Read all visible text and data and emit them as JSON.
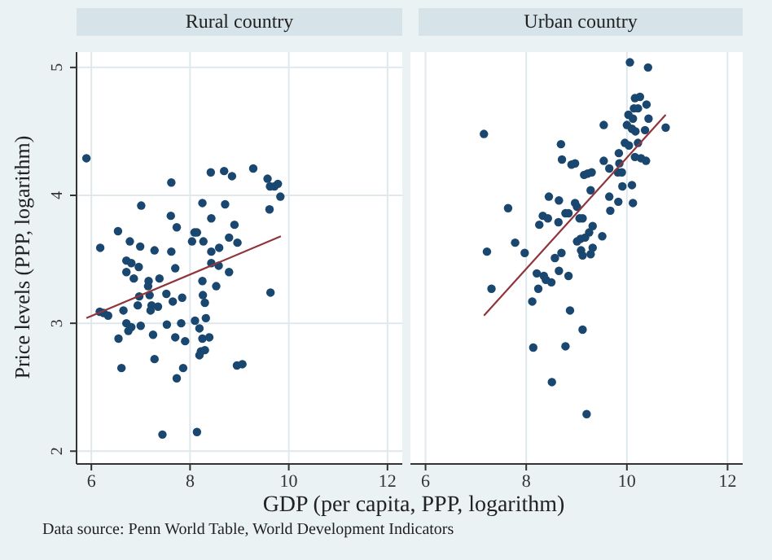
{
  "chart_data": [
    {
      "type": "scatter",
      "title": "Rural country",
      "xlabel": "GDP (per capita, PPP, logarithm)",
      "ylabel": "Price levels (PPP, logarithm)",
      "annotations": [
        "Data source: Penn World Table, World Development Indicators"
      ],
      "xlim": [
        5.7,
        12.3
      ],
      "ylim": [
        1.9,
        5.12
      ],
      "xticks": [
        6,
        8,
        10,
        12
      ],
      "yticks": [
        2,
        3,
        4,
        5
      ],
      "grid": true,
      "marker": "circle",
      "series": [
        {
          "type": "scatter",
          "color": "#1a476f",
          "x": [
            5.9,
            8.42,
            8.69,
            8.85,
            9.28,
            9.57,
            9.62,
            9.71,
            9.78,
            9.83,
            9.61,
            7.62,
            7.01,
            8.25,
            8.71,
            7.61,
            8.43,
            6.54,
            7.73,
            8.9,
            8.09,
            8.14,
            8.04,
            8.27,
            8.79,
            8.96,
            6.18,
            6.78,
            6.99,
            7.28,
            7.62,
            8.43,
            8.59,
            6.71,
            6.81,
            6.71,
            6.96,
            7.7,
            8.43,
            8.58,
            8.79,
            6.86,
            7.16,
            7.15,
            7.38,
            8.25,
            8.53,
            6.97,
            7.18,
            7.52,
            7.84,
            7.65,
            8.26,
            8.3,
            6.94,
            7.22,
            7.35,
            7.2,
            6.17,
            6.25,
            6.34,
            6.65,
            6.71,
            6.81,
            6.75,
            7.0,
            7.53,
            7.82,
            8.1,
            8.32,
            8.19,
            6.55,
            7.25,
            7.7,
            7.9,
            8.25,
            8.39,
            8.22,
            8.3,
            8.19,
            7.28,
            6.61,
            7.86,
            7.73,
            8.95,
            9.06,
            9.63,
            7.44,
            8.14
          ],
          "values": [
            4.29,
            4.18,
            4.19,
            4.15,
            4.21,
            4.13,
            4.07,
            4.07,
            4.09,
            3.99,
            3.89,
            4.1,
            3.92,
            3.94,
            3.93,
            3.84,
            3.82,
            3.72,
            3.75,
            3.77,
            3.71,
            3.71,
            3.64,
            3.64,
            3.67,
            3.63,
            3.59,
            3.64,
            3.6,
            3.57,
            3.56,
            3.56,
            3.59,
            3.49,
            3.47,
            3.4,
            3.44,
            3.43,
            3.47,
            3.45,
            3.4,
            3.35,
            3.33,
            3.29,
            3.35,
            3.33,
            3.29,
            3.21,
            3.22,
            3.23,
            3.2,
            3.17,
            3.22,
            3.16,
            3.14,
            3.14,
            3.13,
            3.1,
            3.09,
            3.08,
            3.06,
            3.1,
            3.0,
            2.97,
            2.94,
            2.98,
            2.99,
            3.0,
            3.02,
            3.04,
            2.96,
            2.88,
            2.91,
            2.89,
            2.86,
            2.88,
            2.89,
            2.78,
            2.79,
            2.75,
            2.72,
            2.65,
            2.65,
            2.57,
            2.67,
            2.68,
            3.24,
            2.13,
            2.15
          ]
        },
        {
          "type": "line",
          "color": "#90353b",
          "marker": "none",
          "x": [
            5.9,
            9.84
          ],
          "values": [
            3.04,
            3.68
          ]
        }
      ]
    },
    {
      "type": "scatter",
      "title": "Urban country",
      "xlim": [
        5.7,
        12.3
      ],
      "ylim": [
        1.9,
        5.12
      ],
      "xticks": [
        6,
        8,
        10,
        12
      ],
      "yticks": [
        2,
        3,
        4,
        5
      ],
      "grid": true,
      "tick_labels": "x",
      "marker": "circle",
      "series": [
        {
          "type": "scatter",
          "color": "#1a476f",
          "x": [
            10.06,
            10.42,
            7.16,
            9.54,
            10.16,
            10.26,
            10.39,
            10.14,
            10.22,
            10.03,
            10.12,
            10.43,
            10.0,
            10.1,
            10.17,
            10.36,
            10.77,
            9.96,
            10.04,
            10.22,
            8.69,
            8.71,
            9.84,
            10.16,
            10.28,
            10.38,
            8.9,
            8.97,
            9.54,
            9.65,
            9.85,
            9.9,
            9.82,
            9.15,
            9.22,
            9.3,
            9.91,
            10.1,
            9.28,
            8.45,
            8.65,
            9.65,
            9.83,
            10.12,
            8.97,
            9.01,
            7.64,
            8.78,
            8.84,
            9.06,
            9.12,
            9.67,
            8.33,
            8.43,
            8.64,
            8.26,
            9.32,
            9.25,
            9.17,
            9.08,
            9.01,
            9.51,
            9.32,
            9.09,
            9.12,
            9.28,
            7.78,
            7.97,
            7.22,
            8.7,
            8.57,
            8.65,
            8.21,
            8.35,
            8.39,
            8.5,
            8.84,
            8.24,
            7.31,
            8.12,
            8.87,
            9.12,
            8.14,
            8.78,
            8.51,
            9.2
          ],
          "values": [
            5.04,
            5.0,
            4.48,
            4.55,
            4.76,
            4.77,
            4.71,
            4.68,
            4.68,
            4.63,
            4.6,
            4.6,
            4.55,
            4.52,
            4.5,
            4.51,
            4.53,
            4.41,
            4.39,
            4.41,
            4.4,
            4.28,
            4.33,
            4.3,
            4.29,
            4.27,
            4.24,
            4.25,
            4.27,
            4.21,
            4.25,
            4.18,
            4.18,
            4.16,
            4.17,
            4.18,
            4.07,
            4.08,
            4.04,
            3.99,
            3.96,
            3.99,
            3.95,
            3.94,
            3.94,
            3.91,
            3.9,
            3.86,
            3.86,
            3.82,
            3.82,
            3.88,
            3.84,
            3.82,
            3.79,
            3.77,
            3.76,
            3.71,
            3.67,
            3.66,
            3.64,
            3.68,
            3.59,
            3.57,
            3.53,
            3.54,
            3.63,
            3.55,
            3.56,
            3.55,
            3.51,
            3.41,
            3.39,
            3.37,
            3.34,
            3.32,
            3.37,
            3.27,
            3.27,
            3.17,
            3.1,
            2.95,
            2.81,
            2.82,
            2.54,
            2.29
          ]
        },
        {
          "type": "line",
          "color": "#90353b",
          "marker": "none",
          "x": [
            7.16,
            10.77
          ],
          "values": [
            3.06,
            4.63
          ]
        }
      ]
    }
  ]
}
